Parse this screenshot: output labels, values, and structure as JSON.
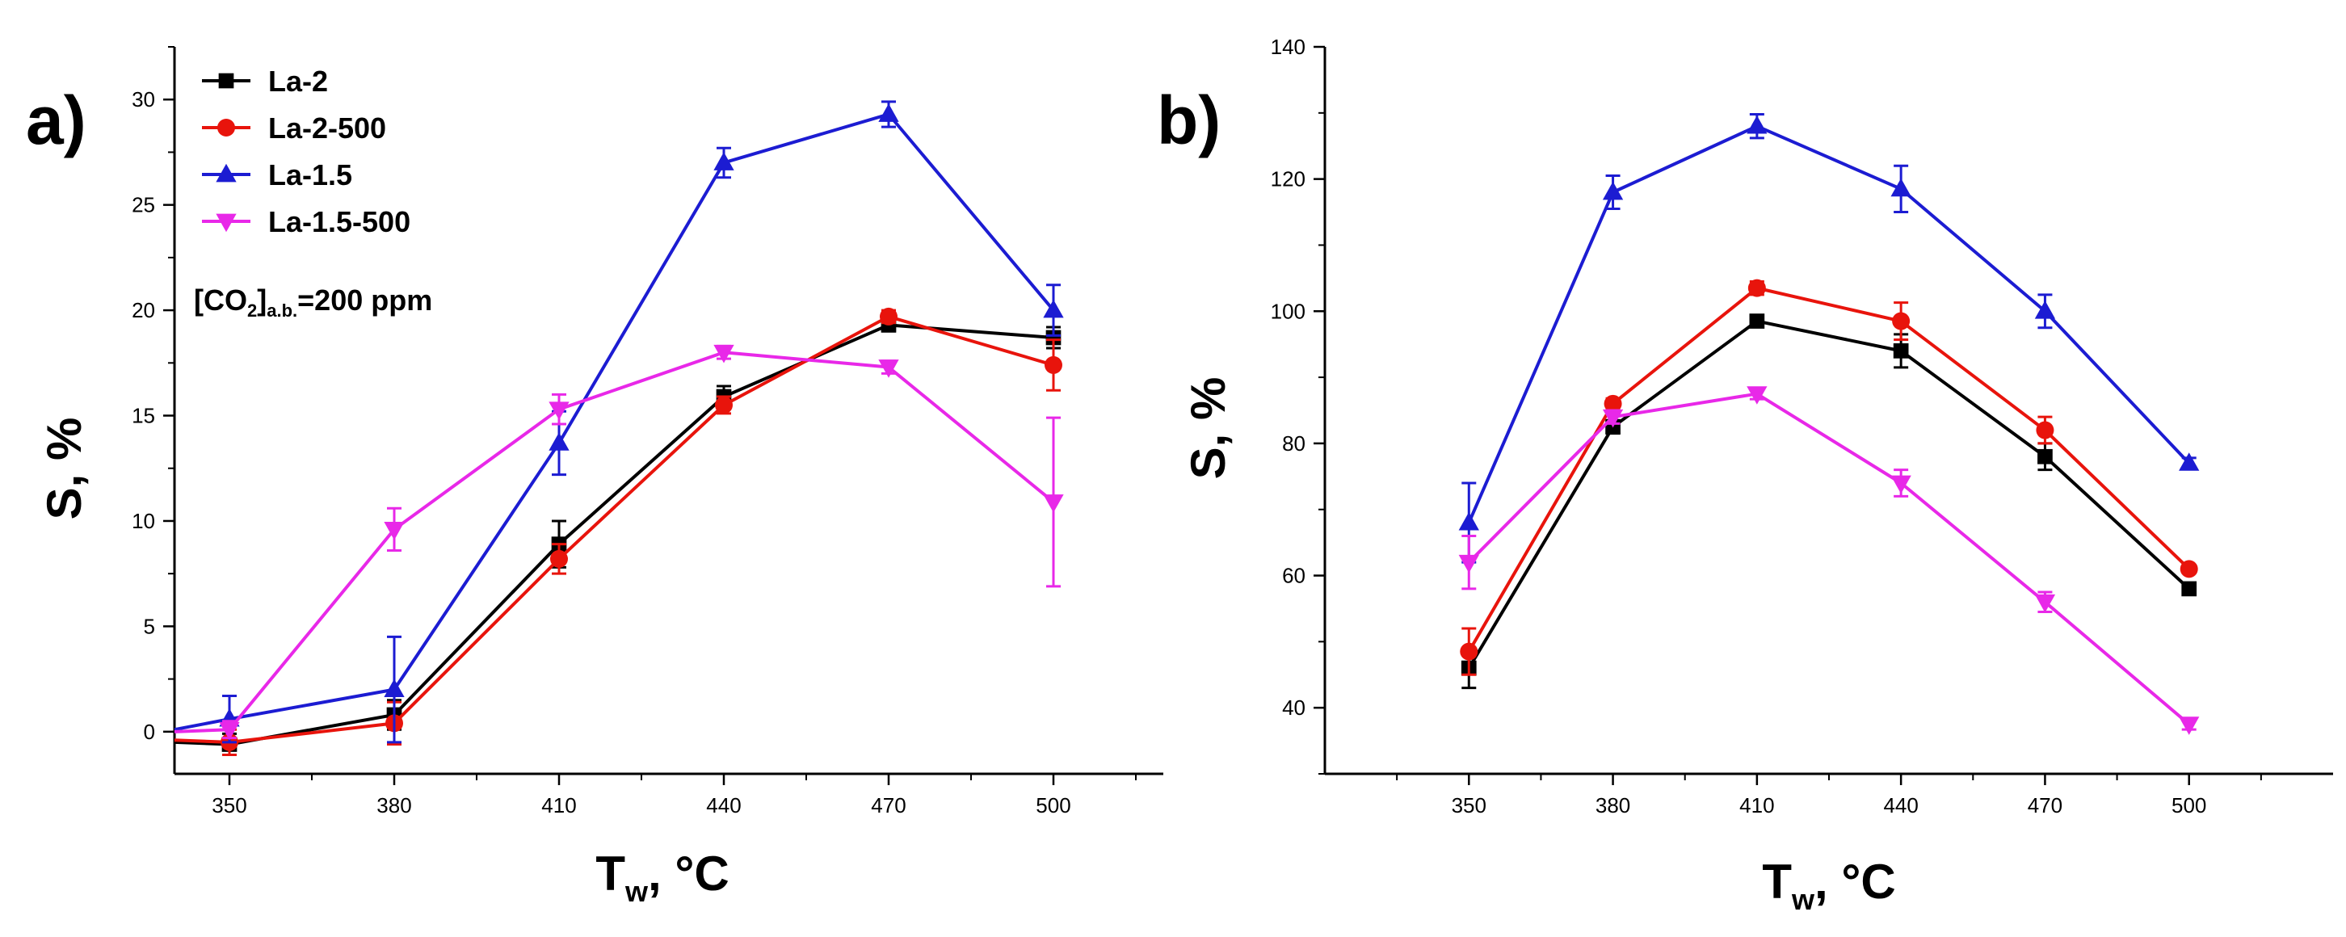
{
  "chart_data": [
    {
      "type": "line",
      "panel_label": "a)",
      "xlabel": "T",
      "xlabel_sub": "w",
      "xlabel_unit": ", °C",
      "ylabel": "S, %",
      "xlim": [
        340,
        520
      ],
      "ylim": [
        -2,
        32.5
      ],
      "xticks": [
        350,
        380,
        410,
        440,
        470,
        500
      ],
      "yticks": [
        0,
        5,
        10,
        15,
        20,
        25,
        30
      ],
      "annotation": {
        "prefix": "[CO",
        "sub1": "2",
        "mid": "]",
        "sub2": "a.b.",
        "suffix": "=200 ppm"
      },
      "legend_position": "top-left",
      "series": [
        {
          "name": "La-2",
          "color": "#000000",
          "marker": "square",
          "x": [
            340,
            350,
            380,
            410,
            440,
            470,
            500
          ],
          "y": [
            -0.5,
            -0.6,
            0.8,
            8.9,
            15.9,
            19.3,
            18.7
          ],
          "err": [
            0,
            0.5,
            0.7,
            1.1,
            0.5,
            0.3,
            0.5
          ]
        },
        {
          "name": "La-2-500",
          "color": "#e8140c",
          "marker": "circle",
          "x": [
            340,
            350,
            380,
            410,
            440,
            470,
            500
          ],
          "y": [
            -0.4,
            -0.5,
            0.4,
            8.2,
            15.5,
            19.7,
            17.4
          ],
          "err": [
            0,
            0.6,
            1.0,
            0.7,
            0.4,
            0.3,
            1.2
          ]
        },
        {
          "name": "La-1.5",
          "color": "#1c1cd2",
          "marker": "triangle-up",
          "x": [
            340,
            350,
            380,
            410,
            440,
            470,
            500
          ],
          "y": [
            0.1,
            0.6,
            2.0,
            13.7,
            27.0,
            29.3,
            20.0
          ],
          "err": [
            0,
            1.1,
            2.5,
            1.5,
            0.7,
            0.6,
            1.2
          ]
        },
        {
          "name": "La-1.5-500",
          "color": "#e828e8",
          "marker": "triangle-down",
          "x": [
            340,
            350,
            380,
            410,
            440,
            470,
            500
          ],
          "y": [
            0.0,
            0.1,
            9.6,
            15.3,
            18.0,
            17.3,
            10.9
          ],
          "err": [
            0,
            0.4,
            1.0,
            0.7,
            0.3,
            0.3,
            4.0
          ]
        }
      ]
    },
    {
      "type": "line",
      "panel_label": "b)",
      "xlabel": "T",
      "xlabel_sub": "w",
      "xlabel_unit": ", °C",
      "ylabel": "S, %",
      "xlim": [
        320,
        530
      ],
      "ylim": [
        30,
        140
      ],
      "xticks": [
        350,
        380,
        410,
        440,
        470,
        500
      ],
      "yticks": [
        40,
        60,
        80,
        100,
        120,
        140
      ],
      "series": [
        {
          "name": "La-2",
          "color": "#000000",
          "marker": "square",
          "x": [
            350,
            380,
            410,
            440,
            470,
            500
          ],
          "y": [
            46.0,
            82.5,
            98.5,
            94.0,
            78.0,
            58.0
          ],
          "err": [
            3.0,
            1.0,
            0.8,
            2.5,
            2.0,
            0.6
          ]
        },
        {
          "name": "La-2-500",
          "color": "#e8140c",
          "marker": "circle",
          "x": [
            350,
            380,
            410,
            440,
            470,
            500
          ],
          "y": [
            48.5,
            86.0,
            103.5,
            98.5,
            82.0,
            61.0
          ],
          "err": [
            3.5,
            0.8,
            1.0,
            2.8,
            2.0,
            0.6
          ]
        },
        {
          "name": "La-1.5",
          "color": "#1c1cd2",
          "marker": "triangle-up",
          "x": [
            350,
            380,
            410,
            440,
            470,
            500
          ],
          "y": [
            68.0,
            118.0,
            128.0,
            118.5,
            100.0,
            77.0
          ],
          "err": [
            6.0,
            2.5,
            1.8,
            3.5,
            2.5,
            0.8
          ]
        },
        {
          "name": "La-1.5-500",
          "color": "#e828e8",
          "marker": "triangle-down",
          "x": [
            350,
            380,
            410,
            440,
            470,
            500
          ],
          "y": [
            62.0,
            84.0,
            87.5,
            74.0,
            56.0,
            37.5
          ],
          "err": [
            4.0,
            1.0,
            0.8,
            2.0,
            1.5,
            0.8
          ]
        }
      ]
    }
  ]
}
